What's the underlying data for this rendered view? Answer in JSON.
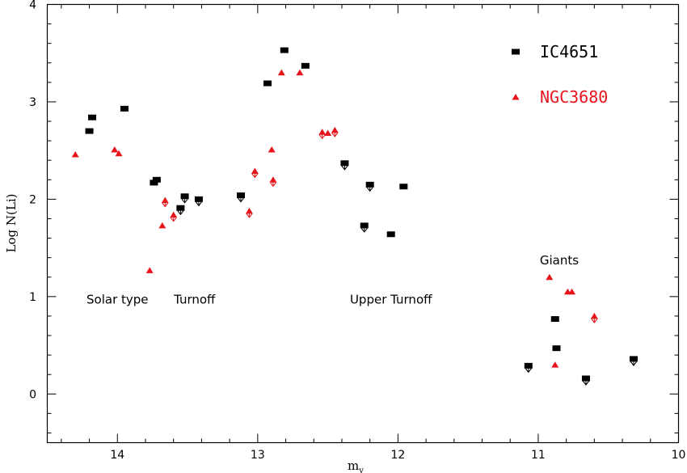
{
  "chart_data": {
    "type": "scatter",
    "xlabel": "m",
    "xlabel_sub": "v",
    "ylabel": "Log N(Li)",
    "xlim": [
      14.5,
      10
    ],
    "ylim": [
      -0.5,
      4
    ],
    "x_ticks": [
      "14",
      "13",
      "12",
      "11",
      "10"
    ],
    "y_ticks": [
      "0",
      "1",
      "2",
      "3",
      "4"
    ],
    "grid": false,
    "legend_position": "top-right",
    "colors": {
      "IC4651": "#000000",
      "NGC3680": "#e8141c"
    },
    "series": [
      {
        "name": "IC4651",
        "marker": "square",
        "color": "#000000",
        "points": [
          {
            "x": 14.2,
            "y": 2.7,
            "upper": false
          },
          {
            "x": 14.18,
            "y": 2.84,
            "upper": false
          },
          {
            "x": 13.95,
            "y": 2.93,
            "upper": false
          },
          {
            "x": 13.74,
            "y": 2.17,
            "upper": false
          },
          {
            "x": 13.72,
            "y": 2.2,
            "upper": false
          },
          {
            "x": 13.55,
            "y": 1.91,
            "upper": true
          },
          {
            "x": 13.52,
            "y": 2.03,
            "upper": true
          },
          {
            "x": 13.42,
            "y": 2.0,
            "upper": true
          },
          {
            "x": 13.12,
            "y": 2.04,
            "upper": true
          },
          {
            "x": 12.93,
            "y": 3.19,
            "upper": false
          },
          {
            "x": 12.81,
            "y": 3.53,
            "upper": false
          },
          {
            "x": 12.66,
            "y": 3.37,
            "upper": false
          },
          {
            "x": 12.38,
            "y": 2.37,
            "upper": true
          },
          {
            "x": 12.24,
            "y": 1.73,
            "upper": true
          },
          {
            "x": 12.2,
            "y": 2.15,
            "upper": true
          },
          {
            "x": 12.05,
            "y": 1.64,
            "upper": false
          },
          {
            "x": 11.96,
            "y": 2.13,
            "upper": false
          },
          {
            "x": 11.07,
            "y": 0.29,
            "upper": true
          },
          {
            "x": 10.88,
            "y": 0.77,
            "upper": false
          },
          {
            "x": 10.87,
            "y": 0.47,
            "upper": false
          },
          {
            "x": 10.66,
            "y": 0.16,
            "upper": true
          },
          {
            "x": 10.32,
            "y": 0.36,
            "upper": true
          }
        ]
      },
      {
        "name": "NGC3680",
        "marker": "triangle",
        "color": "#e8141c",
        "points": [
          {
            "x": 14.3,
            "y": 2.46,
            "upper": false
          },
          {
            "x": 14.02,
            "y": 2.51,
            "upper": false
          },
          {
            "x": 13.99,
            "y": 2.47,
            "upper": false
          },
          {
            "x": 13.77,
            "y": 1.27,
            "upper": false
          },
          {
            "x": 13.68,
            "y": 1.73,
            "upper": false
          },
          {
            "x": 13.66,
            "y": 1.99,
            "upper": true
          },
          {
            "x": 13.6,
            "y": 1.84,
            "upper": true
          },
          {
            "x": 13.06,
            "y": 1.88,
            "upper": true
          },
          {
            "x": 13.02,
            "y": 2.29,
            "upper": true
          },
          {
            "x": 12.9,
            "y": 2.51,
            "upper": false
          },
          {
            "x": 12.89,
            "y": 2.2,
            "upper": true
          },
          {
            "x": 12.83,
            "y": 3.3,
            "upper": false
          },
          {
            "x": 12.7,
            "y": 3.3,
            "upper": false
          },
          {
            "x": 12.54,
            "y": 2.69,
            "upper": true
          },
          {
            "x": 12.5,
            "y": 2.68,
            "upper": false
          },
          {
            "x": 12.45,
            "y": 2.71,
            "upper": true
          },
          {
            "x": 10.92,
            "y": 1.2,
            "upper": false
          },
          {
            "x": 10.88,
            "y": 0.3,
            "upper": false
          },
          {
            "x": 10.79,
            "y": 1.05,
            "upper": false
          },
          {
            "x": 10.76,
            "y": 1.05,
            "upper": false
          },
          {
            "x": 10.6,
            "y": 0.8,
            "upper": true
          }
        ]
      }
    ],
    "annotations": [
      {
        "text": "Solar type",
        "x": 14.0,
        "y": 0.93
      },
      {
        "text": "Turnoff",
        "x": 13.45,
        "y": 0.93
      },
      {
        "text": "Upper Turnoff",
        "x": 12.05,
        "y": 0.93
      },
      {
        "text": "Giants",
        "x": 10.85,
        "y": 1.33
      }
    ]
  }
}
